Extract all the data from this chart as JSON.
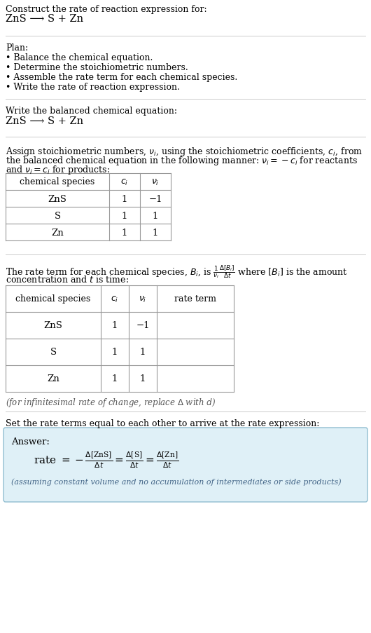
{
  "title_line1": "Construct the rate of reaction expression for:",
  "title_line2": "ZnS ⟶ S + Zn",
  "plan_header": "Plan:",
  "plan_items": [
    "• Balance the chemical equation.",
    "• Determine the stoichiometric numbers.",
    "• Assemble the rate term for each chemical species.",
    "• Write the rate of reaction expression."
  ],
  "balanced_eq_header": "Write the balanced chemical equation:",
  "balanced_eq": "ZnS ⟶ S + Zn",
  "table1_headers": [
    "chemical species",
    "c_i",
    "ν_i"
  ],
  "table1_rows": [
    [
      "ZnS",
      "1",
      "−1"
    ],
    [
      "S",
      "1",
      "1"
    ],
    [
      "Zn",
      "1",
      "1"
    ]
  ],
  "table2_headers": [
    "chemical species",
    "c_i",
    "ν_i",
    "rate term"
  ],
  "table2_rows": [
    [
      "ZnS",
      "1",
      "−1"
    ],
    [
      "S",
      "1",
      "1"
    ],
    [
      "Zn",
      "1",
      "1"
    ]
  ],
  "infinitesimal_note": "(for infinitesimal rate of change, replace Δ with d)",
  "set_rate_text": "Set the rate terms equal to each other to arrive at the rate expression:",
  "answer_label": "Answer:",
  "answer_box_color": "#dff0f7",
  "answer_box_border": "#90bdd0",
  "assuming_note": "(assuming constant volume and no accumulation of intermediates or side products)",
  "bg_color": "#ffffff",
  "text_color": "#000000"
}
